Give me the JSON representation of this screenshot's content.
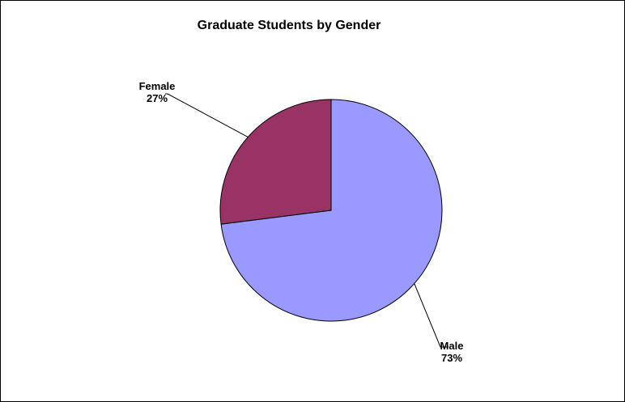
{
  "chart_data": {
    "type": "pie",
    "title": "Graduate Students by Gender",
    "slices": [
      {
        "label": "Male",
        "value": 73,
        "percent_label": "73%",
        "color": "#9999ff"
      },
      {
        "label": "Female",
        "value": 27,
        "percent_label": "27%",
        "color": "#993366"
      }
    ],
    "start_angle": "12 o'clock",
    "direction": "clockwise",
    "legend": "none",
    "data_labels": "outside with leader lines"
  }
}
